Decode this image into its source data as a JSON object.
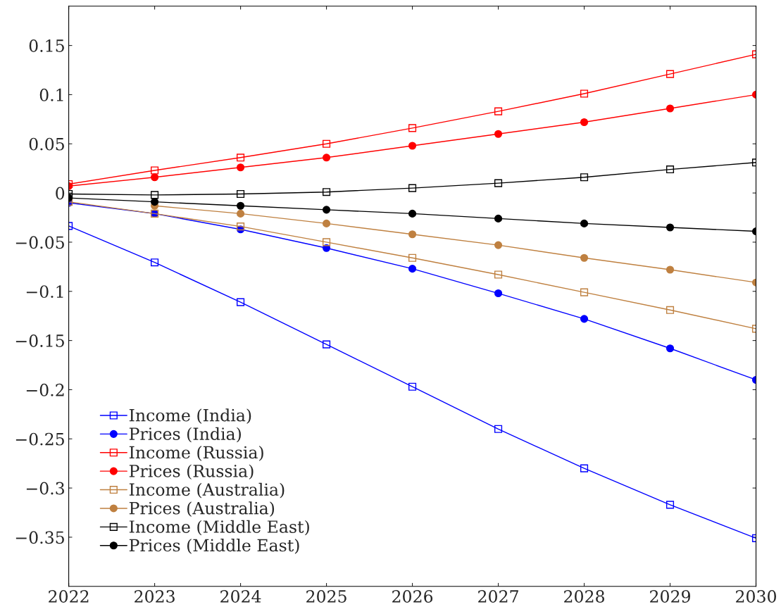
{
  "chart_data": {
    "type": "line",
    "x": [
      2022,
      2023,
      2024,
      2025,
      2026,
      2027,
      2028,
      2029,
      2030
    ],
    "xlim": [
      2022,
      2030
    ],
    "xticks": [
      2022,
      2023,
      2024,
      2025,
      2026,
      2027,
      2028,
      2029,
      2030
    ],
    "ylim": [
      -0.4,
      0.19
    ],
    "yticks": [
      {
        "value": -0.35,
        "label": "−0.35"
      },
      {
        "value": -0.3,
        "label": "−0.3"
      },
      {
        "value": -0.25,
        "label": "−0.25"
      },
      {
        "value": -0.2,
        "label": "−0.2"
      },
      {
        "value": -0.15,
        "label": "−0.15"
      },
      {
        "value": -0.1,
        "label": "−0.1"
      },
      {
        "value": -0.05,
        "label": "−0.05"
      },
      0,
      0.05,
      0.1,
      0.15
    ],
    "grid": false,
    "legend": "bottom left",
    "series": [
      {
        "name": "Income (India)",
        "color": "#0000ff",
        "marker": "square",
        "values": [
          -0.0335,
          -0.0706,
          -0.111,
          -0.154,
          -0.197,
          -0.24,
          -0.28,
          -0.317,
          -0.351
        ]
      },
      {
        "name": "Prices (India)",
        "color": "#0000ff",
        "marker": "circle",
        "values": [
          -0.01,
          -0.021,
          -0.037,
          -0.056,
          -0.077,
          -0.102,
          -0.128,
          -0.158,
          -0.19
        ]
      },
      {
        "name": "Income (Russia)",
        "color": "#ff0000",
        "marker": "square",
        "values": [
          0.009,
          0.023,
          0.036,
          0.05,
          0.066,
          0.083,
          0.101,
          0.121,
          0.141
        ]
      },
      {
        "name": "Prices (Russia)",
        "color": "#ff0000",
        "marker": "circle",
        "values": [
          0.007,
          0.016,
          0.026,
          0.036,
          0.048,
          0.06,
          0.072,
          0.086,
          0.1
        ]
      },
      {
        "name": "Income (Australia)",
        "color": "#bf8040",
        "marker": "square",
        "values": [
          -0.009,
          -0.021,
          -0.034,
          -0.05,
          -0.066,
          -0.083,
          -0.101,
          -0.119,
          -0.138
        ]
      },
      {
        "name": "Prices (Australia)",
        "color": "#bf8040",
        "marker": "circle",
        "values": [
          null,
          -0.013,
          -0.021,
          -0.031,
          -0.042,
          -0.053,
          -0.066,
          -0.078,
          -0.091
        ]
      },
      {
        "name": "Income (Middle East)",
        "color": "#000000",
        "marker": "square",
        "values": [
          -0.001,
          -0.002,
          -0.001,
          0.001,
          0.005,
          0.01,
          0.016,
          0.024,
          0.031
        ]
      },
      {
        "name": "Prices (Middle East)",
        "color": "#000000",
        "marker": "circle",
        "values": [
          -0.005,
          -0.009,
          -0.013,
          -0.017,
          -0.021,
          -0.026,
          -0.031,
          -0.035,
          -0.039
        ]
      }
    ]
  }
}
